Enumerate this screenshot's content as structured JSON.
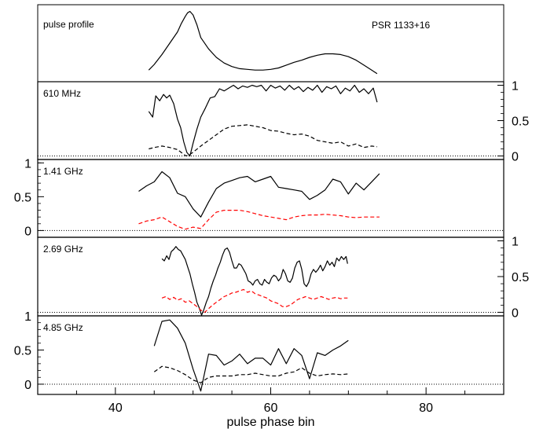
{
  "chart_data": {
    "type": "line",
    "xlabel": "pulse phase bin",
    "xlim": [
      30,
      90
    ],
    "x_ticks": [
      40,
      60,
      80
    ],
    "x_tick_labels": [
      "40",
      "60",
      "80"
    ],
    "y_tick_labels": [
      "0",
      "0.5",
      "1"
    ],
    "colors": {
      "solid": "#000000",
      "dashed_black": "#000000",
      "dashed_red": "#ff0000"
    },
    "panels": [
      {
        "label": "pulse profile",
        "source": "PSR 1133+16",
        "ylim": [
          0,
          1
        ],
        "series": [
          {
            "style": "solid",
            "color": "#000000",
            "x": [
              44.3,
              45,
              46,
              47,
              48,
              48.5,
              49,
              49.3,
              49.6,
              50,
              50.5,
              51,
              52,
              53,
              54,
              55,
              56,
              57,
              58,
              59,
              60,
              61,
              62,
              63,
              64,
              65,
              66,
              67,
              68,
              69,
              70,
              71,
              72,
              73,
              73.7
            ],
            "y": [
              0.12,
              0.2,
              0.34,
              0.5,
              0.66,
              0.78,
              0.88,
              0.93,
              0.95,
              0.9,
              0.76,
              0.58,
              0.42,
              0.3,
              0.22,
              0.17,
              0.14,
              0.13,
              0.12,
              0.12,
              0.13,
              0.15,
              0.19,
              0.23,
              0.26,
              0.3,
              0.33,
              0.35,
              0.35,
              0.34,
              0.31,
              0.26,
              0.19,
              0.12,
              0.07
            ]
          }
        ]
      },
      {
        "label": "610 MHz",
        "ylim": [
          -0.05,
          1.05
        ],
        "axis_side": "right",
        "series": [
          {
            "style": "solid",
            "color": "#000000",
            "x": [
              44.3,
              44.8,
              45.2,
              45.7,
              46.2,
              46.6,
              47,
              47.5,
              48,
              48.4,
              48.8,
              49.2,
              49.6,
              50,
              50.5,
              51,
              51.6,
              52.2,
              52.8,
              53.4,
              54,
              54.6,
              55.2,
              55.8,
              56.4,
              57,
              57.6,
              58.2,
              58.8,
              59.4,
              60,
              60.6,
              61.2,
              61.8,
              62.4,
              63,
              63.6,
              64.2,
              64.8,
              65.4,
              66,
              66.6,
              67.2,
              67.8,
              68.4,
              69,
              69.6,
              70.2,
              70.8,
              71.4,
              72,
              72.6,
              73.2,
              73.7
            ],
            "y": [
              0.63,
              0.55,
              0.85,
              0.78,
              0.87,
              0.82,
              0.86,
              0.74,
              0.52,
              0.4,
              0.2,
              0.05,
              0.0,
              0.18,
              0.38,
              0.55,
              0.68,
              0.82,
              0.84,
              0.95,
              0.92,
              0.96,
              1.0,
              0.95,
              0.99,
              0.97,
              1.0,
              0.98,
              1.0,
              0.92,
              1.0,
              0.96,
              0.99,
              0.93,
              1.0,
              0.94,
              0.98,
              0.91,
              0.97,
              0.93,
              1.0,
              0.9,
              0.98,
              0.95,
              0.99,
              0.88,
              0.96,
              0.92,
              1.0,
              0.9,
              0.95,
              0.88,
              0.96,
              0.76
            ]
          },
          {
            "style": "dashed",
            "color": "#000000",
            "x": [
              44.3,
              45,
              46,
              47,
              48,
              48.6,
              49.1,
              49.6,
              50.2,
              51,
              52,
              53,
              54,
              55,
              56,
              57,
              58,
              59,
              60,
              61,
              62,
              63,
              64,
              65,
              66,
              67,
              68,
              69,
              70,
              71,
              72,
              73,
              73.7
            ],
            "y": [
              0.1,
              0.12,
              0.14,
              0.12,
              0.09,
              0.04,
              0.0,
              0.02,
              0.07,
              0.14,
              0.22,
              0.3,
              0.38,
              0.42,
              0.43,
              0.44,
              0.42,
              0.4,
              0.36,
              0.35,
              0.32,
              0.3,
              0.31,
              0.28,
              0.22,
              0.2,
              0.18,
              0.2,
              0.14,
              0.17,
              0.12,
              0.14,
              0.13
            ]
          }
        ]
      },
      {
        "label": "1.41 GHz",
        "ylim": [
          -0.1,
          1.05
        ],
        "axis_side": "left",
        "series": [
          {
            "style": "solid",
            "color": "#000000",
            "x": [
              43,
              44,
              45,
              46,
              47,
              48,
              49,
              50,
              51,
              52,
              53,
              54,
              55,
              56,
              57,
              58,
              59,
              60,
              61,
              62,
              63,
              64,
              65,
              66,
              67,
              68,
              69,
              70,
              71,
              72,
              73,
              74
            ],
            "y": [
              0.58,
              0.66,
              0.72,
              0.87,
              0.78,
              0.55,
              0.5,
              0.32,
              0.2,
              0.42,
              0.62,
              0.7,
              0.74,
              0.78,
              0.8,
              0.72,
              0.76,
              0.8,
              0.64,
              0.62,
              0.6,
              0.58,
              0.46,
              0.52,
              0.6,
              0.76,
              0.72,
              0.54,
              0.7,
              0.6,
              0.72,
              0.84
            ]
          },
          {
            "style": "dashed",
            "color": "#ff0000",
            "x": [
              43,
              44,
              45,
              46,
              47,
              48,
              49,
              50,
              51,
              52,
              53,
              54,
              55,
              56,
              57,
              58,
              59,
              60,
              61,
              62,
              63,
              64,
              65,
              66,
              67,
              68,
              69,
              70,
              71,
              72,
              73,
              74
            ],
            "y": [
              0.1,
              0.14,
              0.16,
              0.2,
              0.13,
              0.06,
              0.02,
              0.05,
              0.03,
              0.16,
              0.27,
              0.3,
              0.3,
              0.3,
              0.28,
              0.25,
              0.22,
              0.2,
              0.18,
              0.16,
              0.2,
              0.22,
              0.23,
              0.23,
              0.24,
              0.23,
              0.22,
              0.2,
              0.19,
              0.2,
              0.2,
              0.2
            ]
          }
        ]
      },
      {
        "label": "2.69 GHz",
        "ylim": [
          -0.05,
          1.05
        ],
        "axis_side": "right",
        "series": [
          {
            "style": "solid",
            "color": "#000000",
            "x": [
              46.0,
              46.3,
              46.6,
              46.9,
              47.2,
              47.5,
              47.8,
              48.1,
              48.4,
              48.7,
              49.0,
              49.3,
              49.6,
              49.9,
              50.2,
              50.5,
              50.8,
              51.1,
              51.4,
              51.7,
              52.0,
              52.3,
              52.6,
              52.9,
              53.2,
              53.5,
              53.8,
              54.1,
              54.4,
              54.7,
              55.0,
              55.3,
              55.6,
              55.9,
              56.2,
              56.5,
              56.8,
              57.1,
              57.4,
              57.7,
              58.0,
              58.3,
              58.6,
              58.9,
              59.2,
              59.5,
              59.8,
              60.1,
              60.4,
              60.7,
              61.0,
              61.3,
              61.6,
              61.9,
              62.2,
              62.5,
              62.8,
              63.1,
              63.4,
              63.7,
              64.0,
              64.3,
              64.6,
              64.9,
              65.2,
              65.5,
              65.8,
              66.1,
              66.4,
              66.7,
              67.0,
              67.3,
              67.6,
              67.9,
              68.2,
              68.5,
              68.8,
              69.1,
              69.4,
              69.7,
              69.9
            ],
            "y": [
              0.75,
              0.72,
              0.79,
              0.74,
              0.85,
              0.88,
              0.92,
              0.88,
              0.86,
              0.8,
              0.74,
              0.64,
              0.54,
              0.4,
              0.28,
              0.14,
              0.06,
              -0.04,
              0.04,
              0.14,
              0.22,
              0.34,
              0.44,
              0.52,
              0.62,
              0.7,
              0.8,
              0.88,
              0.9,
              0.84,
              0.72,
              0.62,
              0.62,
              0.68,
              0.66,
              0.6,
              0.54,
              0.44,
              0.42,
              0.38,
              0.44,
              0.46,
              0.4,
              0.38,
              0.46,
              0.42,
              0.4,
              0.48,
              0.52,
              0.5,
              0.44,
              0.48,
              0.6,
              0.54,
              0.44,
              0.42,
              0.48,
              0.62,
              0.7,
              0.72,
              0.6,
              0.4,
              0.36,
              0.42,
              0.54,
              0.6,
              0.56,
              0.6,
              0.66,
              0.58,
              0.64,
              0.72,
              0.66,
              0.7,
              0.64,
              0.76,
              0.72,
              0.78,
              0.74,
              0.78,
              0.68
            ]
          },
          {
            "style": "dashed",
            "color": "#ff0000",
            "x": [
              46.0,
              46.5,
              47.0,
              47.5,
              48.0,
              48.5,
              49.0,
              49.5,
              50.0,
              50.5,
              51.0,
              51.5,
              52.0,
              52.5,
              53.0,
              53.5,
              54.0,
              54.5,
              55.0,
              55.5,
              56.0,
              56.5,
              57.0,
              57.5,
              58.0,
              58.5,
              59.0,
              59.5,
              60.0,
              60.5,
              61.0,
              61.5,
              62.0,
              62.5,
              63.0,
              63.5,
              64.0,
              64.5,
              65.0,
              65.5,
              66.0,
              66.5,
              67.0,
              67.5,
              68.0,
              68.5,
              69.0,
              69.5,
              69.9
            ],
            "y": [
              0.2,
              0.22,
              0.18,
              0.21,
              0.17,
              0.19,
              0.14,
              0.16,
              0.12,
              0.08,
              0.03,
              0.0,
              0.05,
              0.1,
              0.14,
              0.18,
              0.22,
              0.24,
              0.27,
              0.28,
              0.3,
              0.32,
              0.28,
              0.3,
              0.26,
              0.24,
              0.22,
              0.2,
              0.16,
              0.14,
              0.12,
              0.08,
              0.08,
              0.1,
              0.14,
              0.18,
              0.2,
              0.22,
              0.2,
              0.18,
              0.2,
              0.22,
              0.2,
              0.18,
              0.2,
              0.21,
              0.19,
              0.2,
              0.2
            ]
          }
        ]
      },
      {
        "label": "4.85 GHz",
        "ylim": [
          -0.15,
          1.0
        ],
        "axis_side": "left",
        "series": [
          {
            "style": "solid",
            "color": "#000000",
            "x": [
              45,
              46,
              47,
              48,
              49,
              50,
              51,
              52,
              53,
              54,
              55,
              56,
              57,
              58,
              59,
              60,
              61,
              62,
              63,
              64,
              65,
              66,
              67,
              68,
              69,
              70
            ],
            "y": [
              0.56,
              0.92,
              0.94,
              0.82,
              0.6,
              0.22,
              -0.1,
              0.44,
              0.42,
              0.28,
              0.34,
              0.44,
              0.3,
              0.38,
              0.38,
              0.28,
              0.52,
              0.3,
              0.52,
              0.42,
              0.08,
              0.46,
              0.42,
              0.5,
              0.56,
              0.64
            ]
          },
          {
            "style": "dashed",
            "color": "#000000",
            "x": [
              45,
              46,
              47,
              48,
              49,
              50,
              51,
              52,
              53,
              54,
              55,
              56,
              57,
              58,
              59,
              60,
              61,
              62,
              63,
              64,
              65,
              66,
              67,
              68,
              69,
              70
            ],
            "y": [
              0.18,
              0.26,
              0.24,
              0.2,
              0.14,
              0.06,
              0.02,
              0.1,
              0.12,
              0.12,
              0.12,
              0.14,
              0.14,
              0.16,
              0.14,
              0.12,
              0.12,
              0.16,
              0.18,
              0.24,
              0.16,
              0.12,
              0.14,
              0.15,
              0.14,
              0.15
            ]
          }
        ]
      }
    ]
  }
}
